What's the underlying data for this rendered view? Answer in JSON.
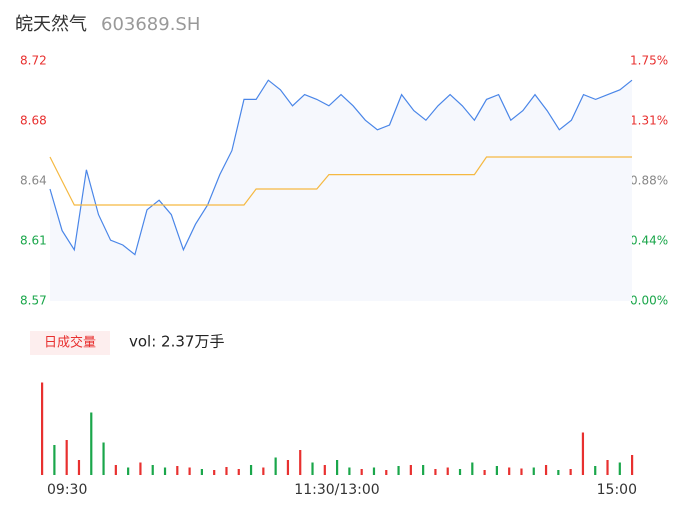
{
  "header": {
    "name": "皖天然气",
    "code": "603689.SH"
  },
  "chart_data": [
    {
      "type": "line",
      "area_color": "#f6f8fd",
      "ylim": [
        8.57,
        8.72
      ],
      "yticks": [
        {
          "value": 8.57,
          "label": "8.57"
        },
        {
          "value": 8.6075,
          "label": "8.61"
        },
        {
          "value": 8.645,
          "label": "8.64"
        },
        {
          "value": 8.6825,
          "label": "8.68"
        },
        {
          "value": 8.72,
          "label": "8.72"
        }
      ],
      "ytick_colors": [
        "#1aa64a",
        "#1aa64a",
        "#888888",
        "#e8302f",
        "#e8302f"
      ],
      "y2lim": [
        0,
        1.75
      ],
      "y2ticks": [
        {
          "value": 0,
          "label": "0.00%"
        },
        {
          "value": 0.4375,
          "label": "0.44%"
        },
        {
          "value": 0.875,
          "label": "0.88%"
        },
        {
          "value": 1.3125,
          "label": "1.31%"
        },
        {
          "value": 1.75,
          "label": "1.75%"
        }
      ],
      "series": [
        {
          "color": "#4a86e8",
          "values": [
            8.64,
            8.614,
            8.602,
            8.652,
            8.624,
            8.608,
            8.605,
            8.599,
            8.627,
            8.633,
            8.624,
            8.602,
            8.618,
            8.63,
            8.649,
            8.664,
            8.696,
            8.696,
            8.708,
            8.702,
            8.692,
            8.699,
            8.696,
            8.692,
            8.699,
            8.692,
            8.683,
            8.677,
            8.68,
            8.699,
            8.689,
            8.683,
            8.692,
            8.699,
            8.692,
            8.683,
            8.696,
            8.699,
            8.683,
            8.689,
            8.699,
            8.689,
            8.677,
            8.683,
            8.699,
            8.696,
            8.699,
            8.702,
            8.708
          ]
        },
        {
          "color": "#f5b942",
          "values": [
            8.66,
            8.645,
            8.63,
            8.63,
            8.63,
            8.63,
            8.63,
            8.63,
            8.63,
            8.63,
            8.63,
            8.63,
            8.63,
            8.63,
            8.63,
            8.63,
            8.63,
            8.64,
            8.64,
            8.64,
            8.64,
            8.64,
            8.64,
            8.649,
            8.649,
            8.649,
            8.649,
            8.649,
            8.649,
            8.649,
            8.649,
            8.649,
            8.649,
            8.649,
            8.649,
            8.649,
            8.66,
            8.66,
            8.66,
            8.66,
            8.66,
            8.66,
            8.66,
            8.66,
            8.66,
            8.66,
            8.66,
            8.66,
            8.66
          ]
        }
      ]
    },
    {
      "type": "bar",
      "legend_label": "日成交量",
      "summary": "vol: 2.37万手",
      "ylim": [
        0,
        2000
      ],
      "categories": [
        "09:30",
        null,
        null,
        null,
        null,
        null,
        null,
        null,
        null,
        null,
        null,
        null,
        null,
        null,
        null,
        null,
        null,
        null,
        null,
        null,
        null,
        null,
        null,
        null,
        "11:30/13:00",
        null,
        null,
        null,
        null,
        null,
        null,
        null,
        null,
        null,
        null,
        null,
        null,
        null,
        null,
        null,
        null,
        null,
        null,
        null,
        null,
        null,
        null,
        null,
        "15:00"
      ],
      "values": [
        1850,
        600,
        700,
        300,
        1250,
        650,
        200,
        150,
        250,
        200,
        150,
        180,
        150,
        120,
        100,
        160,
        120,
        200,
        150,
        350,
        300,
        500,
        250,
        200,
        300,
        150,
        120,
        150,
        100,
        180,
        200,
        200,
        120,
        150,
        120,
        250,
        100,
        180,
        150,
        130,
        150,
        200,
        100,
        120,
        850,
        180,
        300,
        250,
        400
      ],
      "colors": [
        "#e8302f",
        "#1aa64a",
        "#e8302f",
        "#e8302f",
        "#1aa64a",
        "#1aa64a",
        "#e8302f",
        "#1aa64a",
        "#e8302f",
        "#1aa64a",
        "#1aa64a",
        "#e8302f",
        "#e8302f",
        "#1aa64a",
        "#e8302f",
        "#e8302f",
        "#e8302f",
        "#1aa64a",
        "#e8302f",
        "#1aa64a",
        "#e8302f",
        "#e8302f",
        "#1aa64a",
        "#e8302f",
        "#1aa64a",
        "#1aa64a",
        "#e8302f",
        "#1aa64a",
        "#e8302f",
        "#1aa64a",
        "#e8302f",
        "#1aa64a",
        "#e8302f",
        "#e8302f",
        "#1aa64a",
        "#1aa64a",
        "#e8302f",
        "#1aa64a",
        "#e8302f",
        "#e8302f",
        "#1aa64a",
        "#e8302f",
        "#1aa64a",
        "#e8302f",
        "#e8302f",
        "#1aa64a",
        "#e8302f",
        "#1aa64a",
        "#e8302f"
      ]
    }
  ]
}
